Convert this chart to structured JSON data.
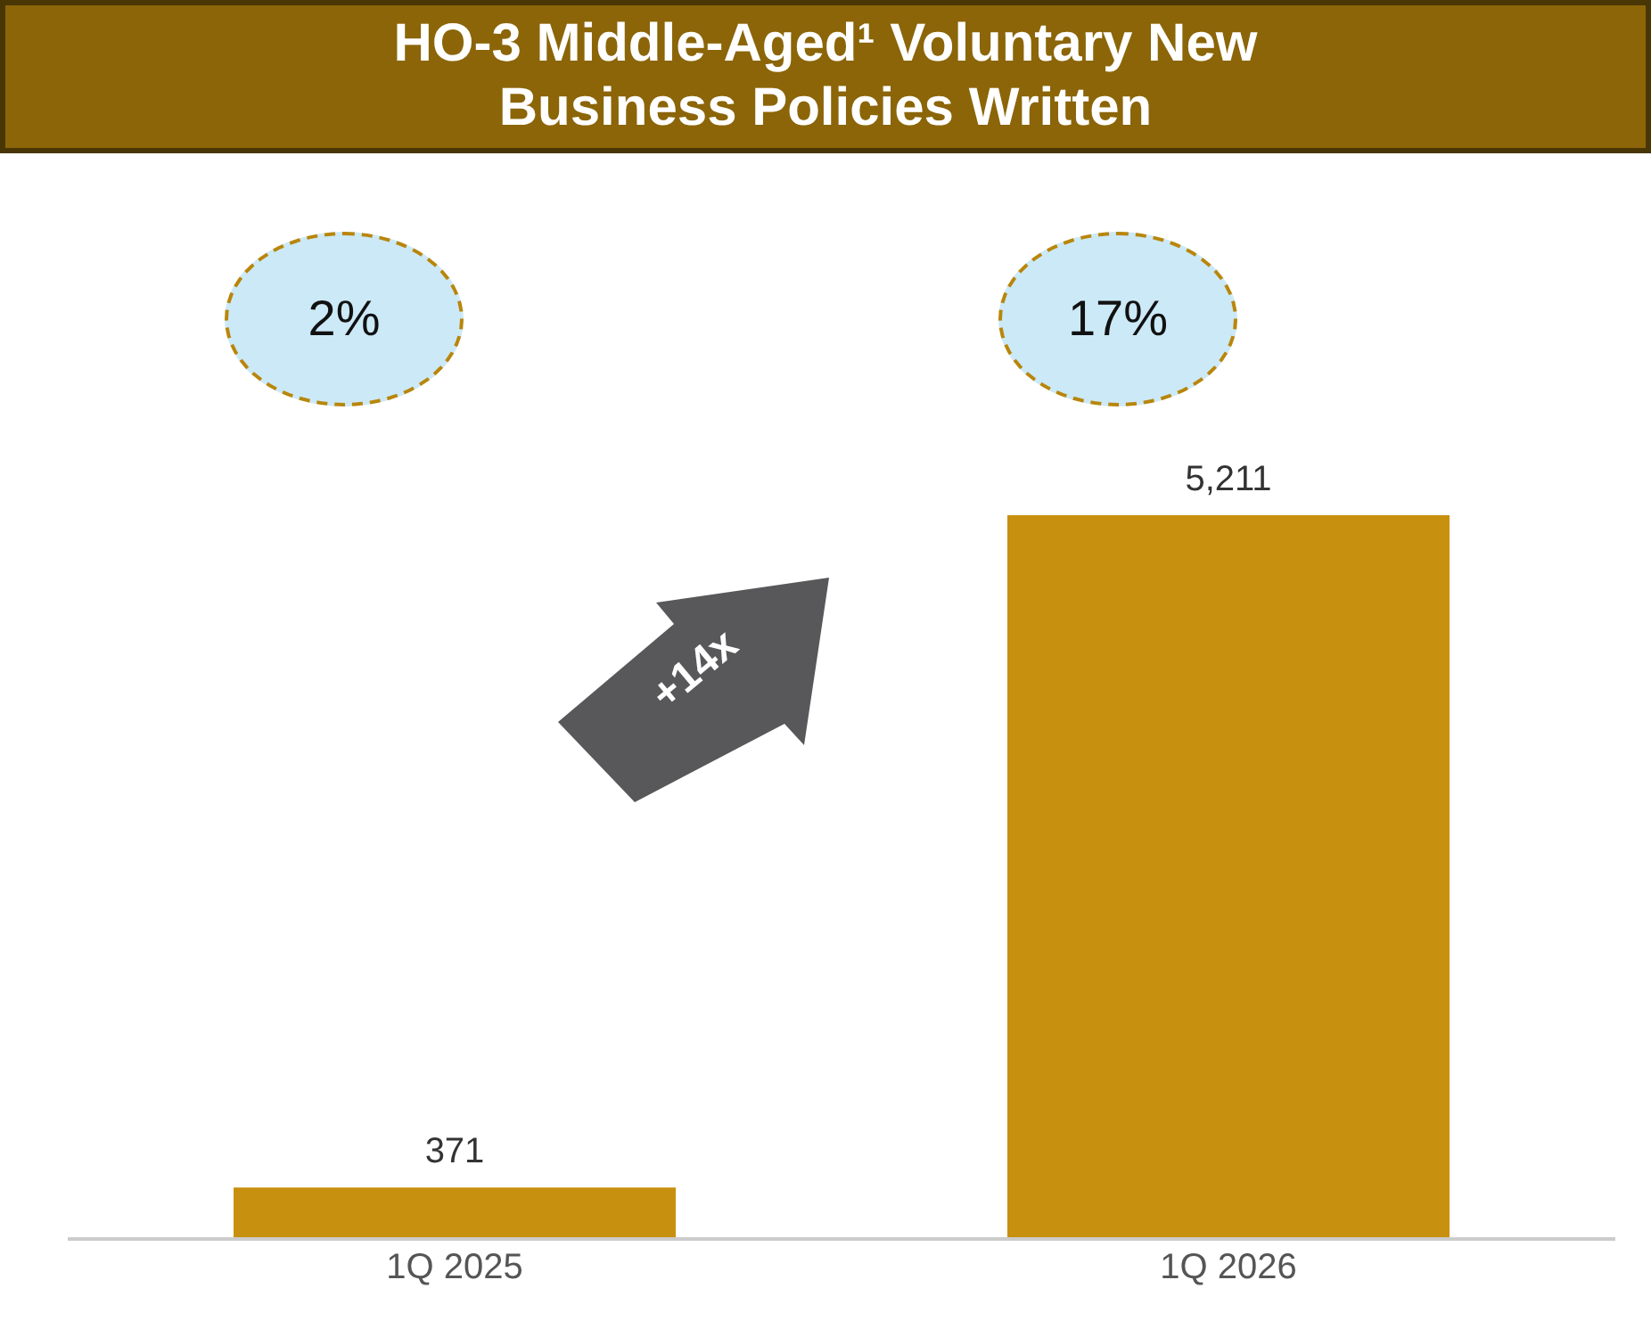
{
  "chart_data": {
    "type": "bar",
    "title": "HO-3 Middle-Aged¹ Voluntary New Business Policies Written",
    "categories": [
      "1Q 2025",
      "1Q 2026"
    ],
    "values": [
      371,
      5211
    ],
    "value_labels": [
      "371",
      "5,211"
    ],
    "color": "#c8900f",
    "annotations": [
      "2%",
      "17%",
      "+14x"
    ]
  }
}
